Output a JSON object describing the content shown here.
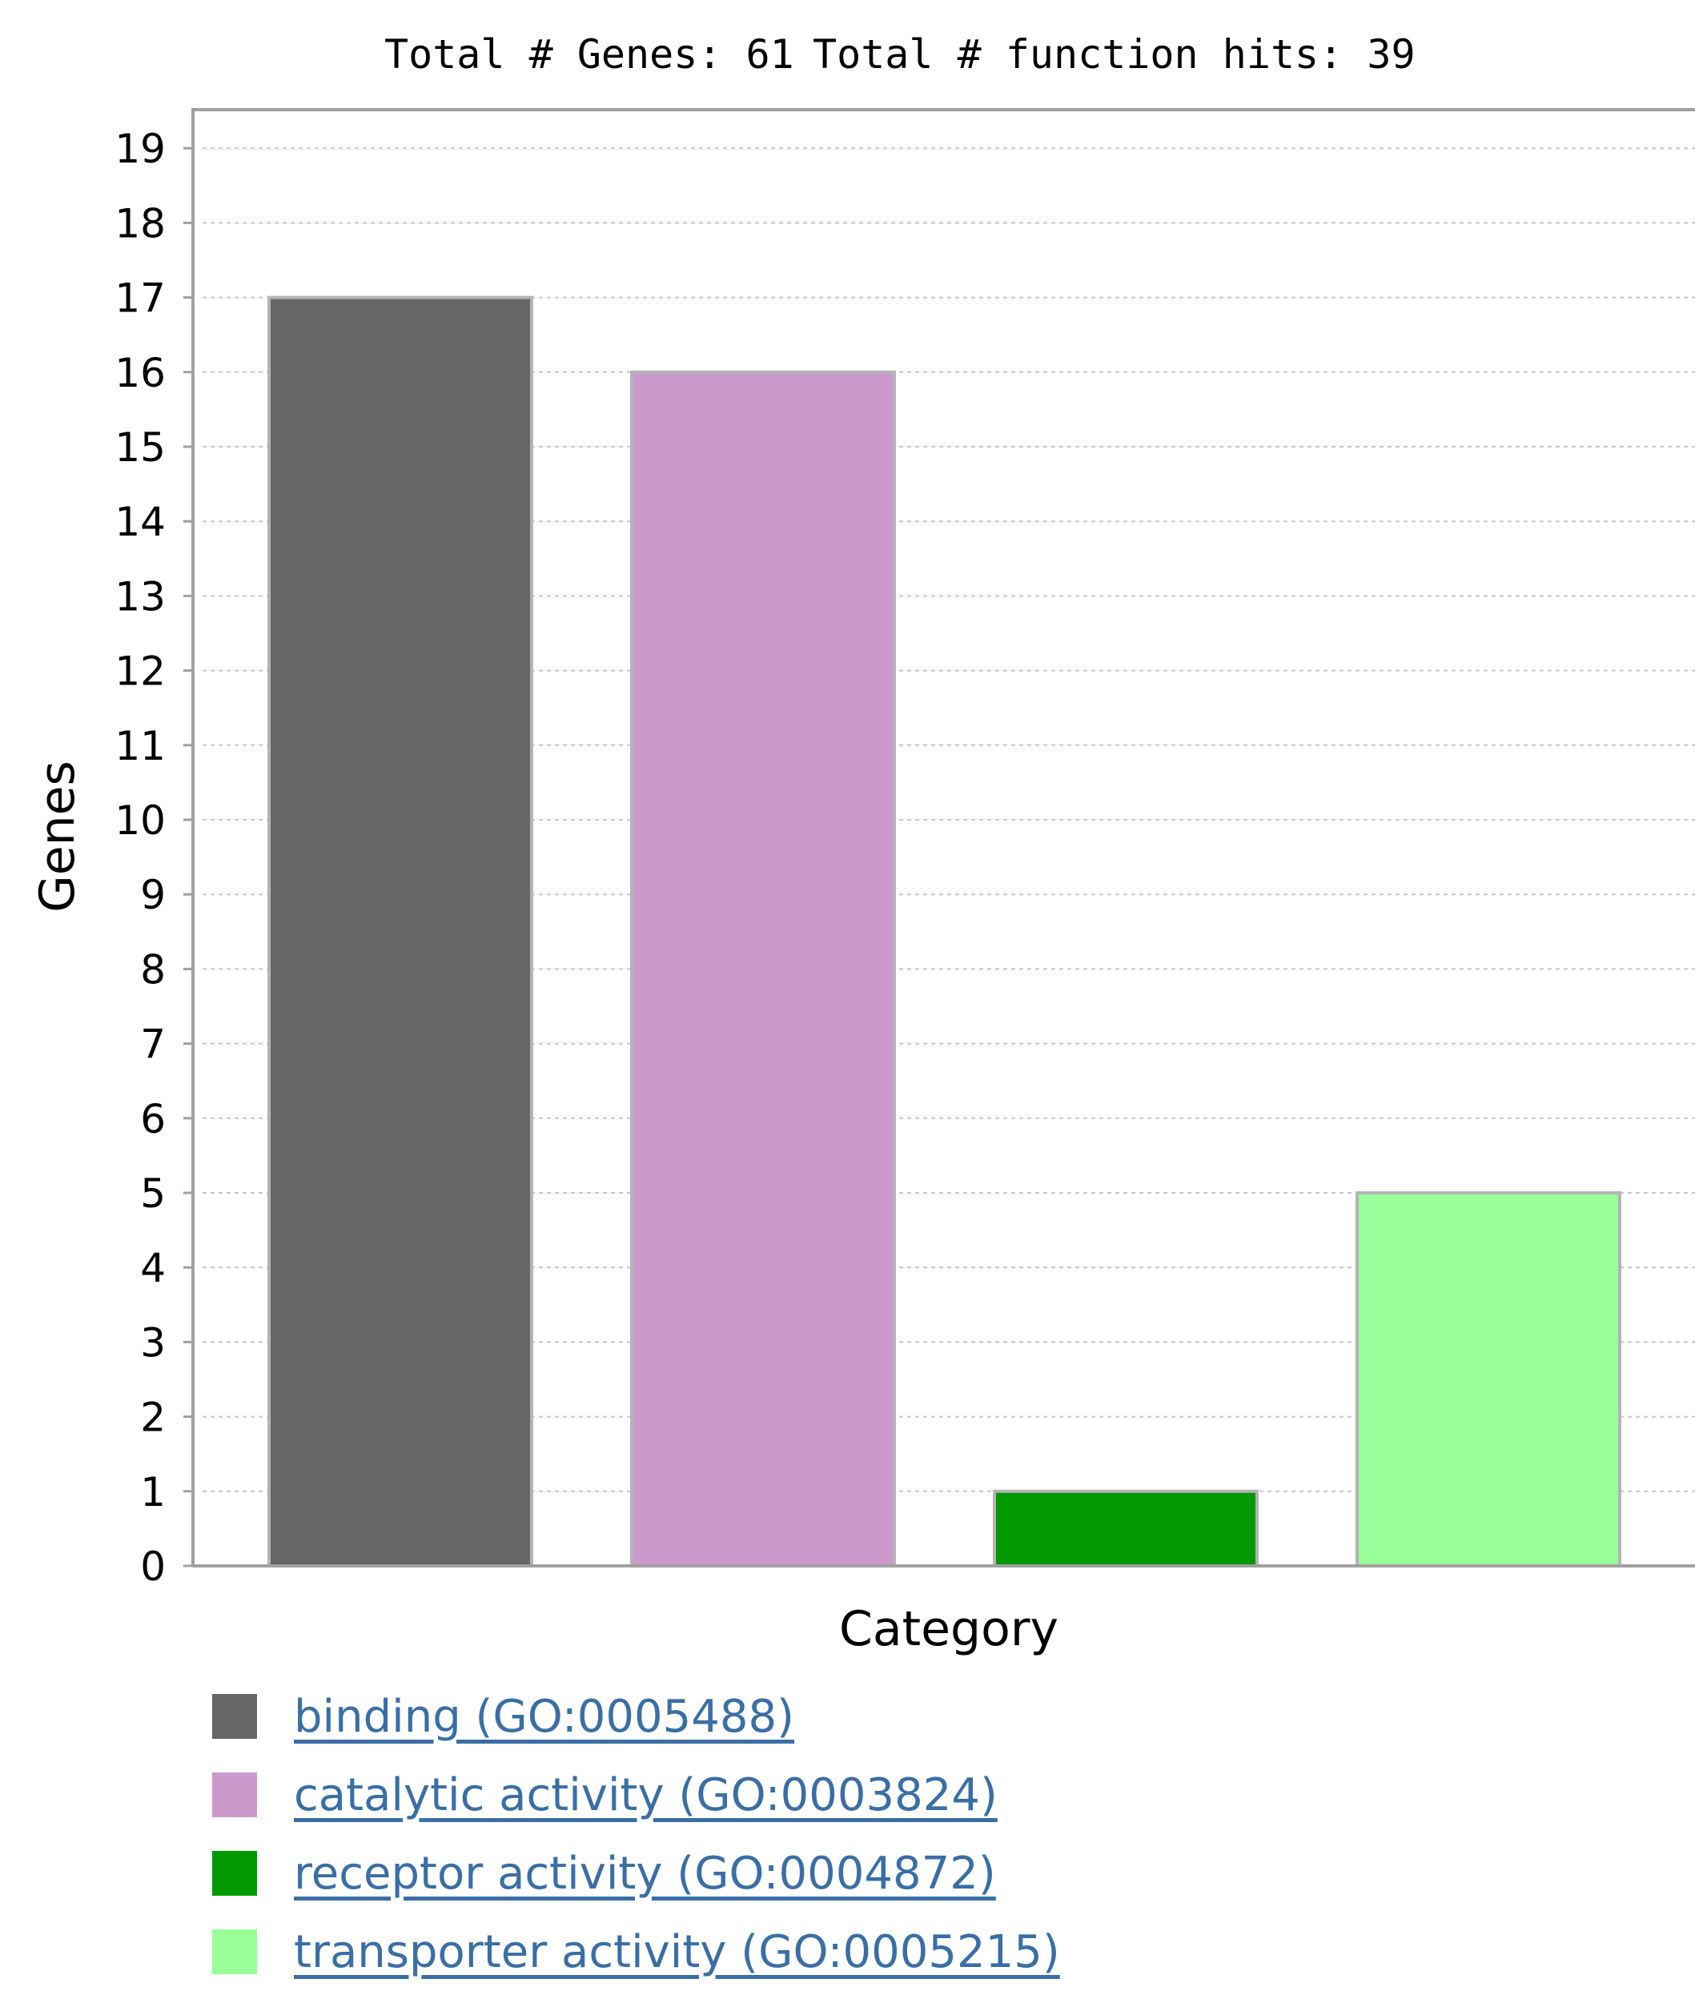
{
  "header": {
    "total_genes_label": "Total # Genes: 61",
    "total_hits_label": "Total # function hits: 39"
  },
  "chart_data": {
    "type": "bar",
    "title": "Total # Genes: 61    Total # function hits: 39",
    "xlabel": "Category",
    "ylabel": "Genes",
    "ylim": [
      0,
      19.5
    ],
    "yticks": [
      0,
      1,
      2,
      3,
      4,
      5,
      6,
      7,
      8,
      9,
      10,
      11,
      12,
      13,
      14,
      15,
      16,
      17,
      18,
      19
    ],
    "grid": true,
    "legend_position": "bottom",
    "categories": [
      "binding (GO:0005488)",
      "catalytic activity (GO:0003824)",
      "receptor activity (GO:0004872)",
      "transporter activity (GO:0005215)"
    ],
    "values": [
      17,
      16,
      1,
      5
    ],
    "colors": [
      "#666666",
      "#cc99cc",
      "#009900",
      "#99ff99"
    ]
  },
  "legend": {
    "items": [
      {
        "label": "binding (GO:0005488)",
        "color": "#666666"
      },
      {
        "label": "catalytic activity (GO:0003824)",
        "color": "#cc99cc"
      },
      {
        "label": "receptor activity (GO:0004872)",
        "color": "#009900"
      },
      {
        "label": "transporter activity (GO:0005215)",
        "color": "#99ff99"
      }
    ]
  }
}
